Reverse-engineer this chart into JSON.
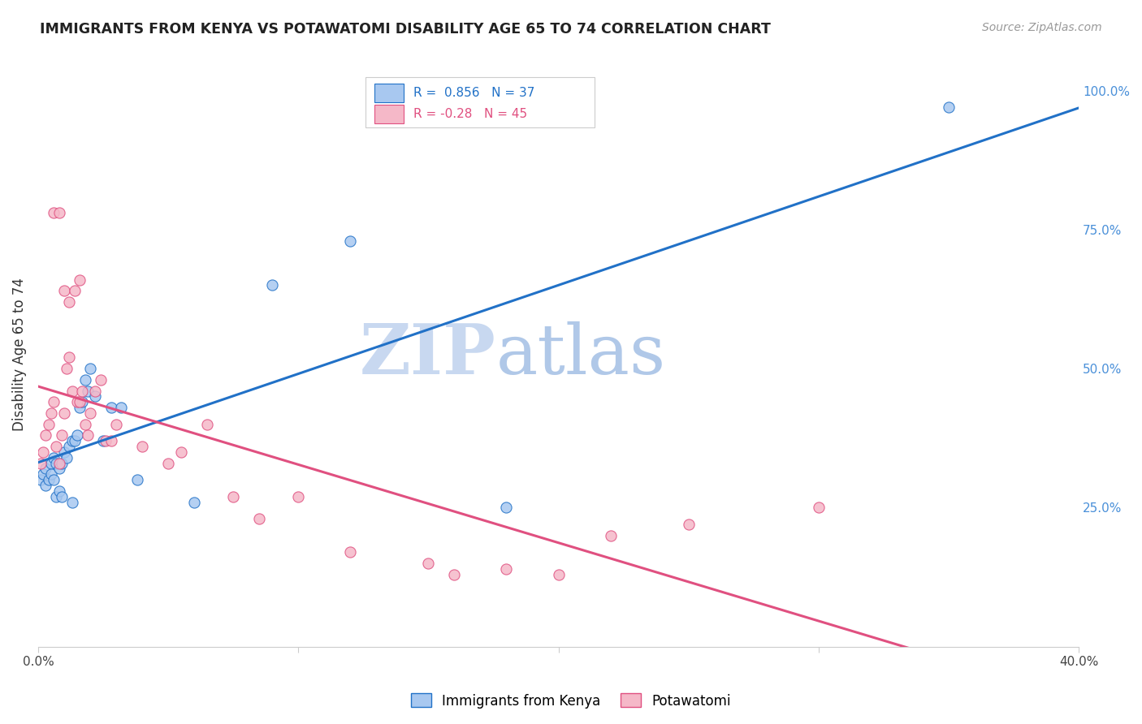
{
  "title": "IMMIGRANTS FROM KENYA VS POTAWATOMI DISABILITY AGE 65 TO 74 CORRELATION CHART",
  "source": "Source: ZipAtlas.com",
  "ylabel": "Disability Age 65 to 74",
  "xlim": [
    0.0,
    0.4
  ],
  "ylim": [
    0.0,
    1.05
  ],
  "kenya_R": 0.856,
  "kenya_N": 37,
  "potawatomi_R": -0.28,
  "potawatomi_N": 45,
  "kenya_color": "#a8c8f0",
  "kenya_line_color": "#2171c7",
  "potawatomi_color": "#f5b8c8",
  "potawatomi_line_color": "#e05080",
  "kenya_scatter_x": [
    0.001,
    0.002,
    0.003,
    0.003,
    0.004,
    0.005,
    0.005,
    0.006,
    0.006,
    0.007,
    0.007,
    0.008,
    0.008,
    0.009,
    0.009,
    0.01,
    0.011,
    0.012,
    0.013,
    0.013,
    0.014,
    0.015,
    0.016,
    0.017,
    0.018,
    0.019,
    0.02,
    0.022,
    0.025,
    0.028,
    0.032,
    0.038,
    0.06,
    0.09,
    0.12,
    0.18,
    0.35
  ],
  "kenya_scatter_y": [
    0.3,
    0.31,
    0.29,
    0.32,
    0.3,
    0.33,
    0.31,
    0.34,
    0.3,
    0.33,
    0.27,
    0.32,
    0.28,
    0.33,
    0.27,
    0.35,
    0.34,
    0.36,
    0.37,
    0.26,
    0.37,
    0.38,
    0.43,
    0.44,
    0.48,
    0.46,
    0.5,
    0.45,
    0.37,
    0.43,
    0.43,
    0.3,
    0.26,
    0.65,
    0.73,
    0.25,
    0.97
  ],
  "potawatomi_scatter_x": [
    0.001,
    0.002,
    0.003,
    0.004,
    0.005,
    0.006,
    0.006,
    0.007,
    0.008,
    0.008,
    0.009,
    0.01,
    0.01,
    0.011,
    0.012,
    0.012,
    0.013,
    0.014,
    0.015,
    0.016,
    0.016,
    0.017,
    0.018,
    0.019,
    0.02,
    0.022,
    0.024,
    0.026,
    0.028,
    0.03,
    0.04,
    0.05,
    0.065,
    0.085,
    0.1,
    0.12,
    0.15,
    0.18,
    0.2,
    0.25,
    0.3,
    0.055,
    0.075,
    0.16,
    0.22
  ],
  "potawatomi_scatter_y": [
    0.33,
    0.35,
    0.38,
    0.4,
    0.42,
    0.44,
    0.78,
    0.36,
    0.33,
    0.78,
    0.38,
    0.42,
    0.64,
    0.5,
    0.52,
    0.62,
    0.46,
    0.64,
    0.44,
    0.44,
    0.66,
    0.46,
    0.4,
    0.38,
    0.42,
    0.46,
    0.48,
    0.37,
    0.37,
    0.4,
    0.36,
    0.33,
    0.4,
    0.23,
    0.27,
    0.17,
    0.15,
    0.14,
    0.13,
    0.22,
    0.25,
    0.35,
    0.27,
    0.13,
    0.2
  ],
  "watermark_zip": "ZIP",
  "watermark_atlas": "atlas",
  "watermark_color": "#c8d8f0",
  "background_color": "#ffffff",
  "grid_color": "#e0e0e0"
}
